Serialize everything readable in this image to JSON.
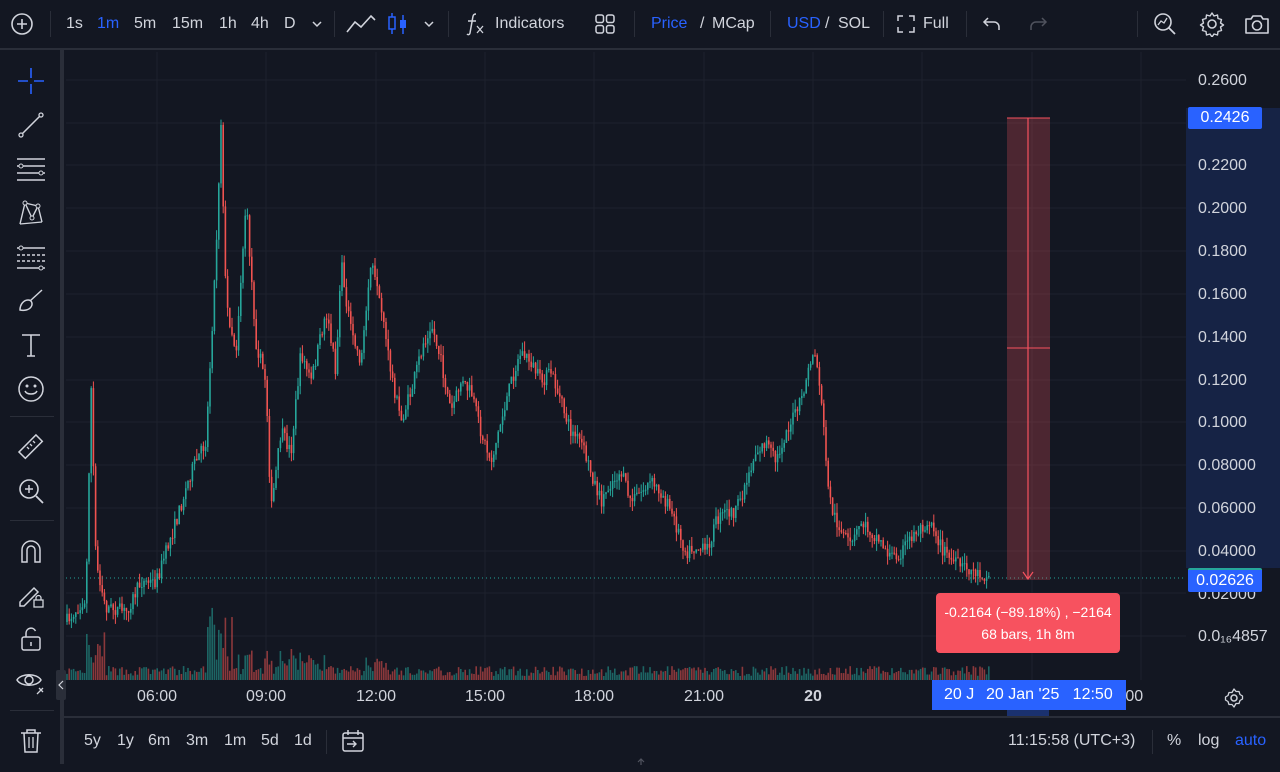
{
  "toolbar": {
    "intervals": [
      "1s",
      "1m",
      "5m",
      "15m",
      "1h",
      "4h",
      "D"
    ],
    "active_interval": "1m",
    "indicators_label": "Indicators",
    "price_label": "Price",
    "mcap_label": "MCap",
    "slash": "/",
    "usd_label": "USD",
    "sol_label": "SOL",
    "full_label": "Full"
  },
  "price_axis": {
    "labels": [
      "0.2600",
      "0.2200",
      "0.2000",
      "0.1800",
      "0.1600",
      "0.1400",
      "0.1200",
      "0.1000",
      "0.08000",
      "0.06000",
      "0.04000",
      "0.02000",
      "0.0₁₆4857"
    ],
    "high_badge": "0.2426",
    "current_badge": "0.02626"
  },
  "time_axis": {
    "labels": [
      "06:00",
      "09:00",
      "12:00",
      "15:00",
      "18:00",
      "21:00",
      "20",
      ":00"
    ],
    "crosshair_left": "20 J",
    "crosshair_label": "20 Jan '25   12:50"
  },
  "measure": {
    "line1": "-0.2164 (−89.18%) , −2164",
    "line2": "68 bars, 1h 8m"
  },
  "bottom": {
    "ranges": [
      "5y",
      "1y",
      "6m",
      "3m",
      "1m",
      "5d",
      "1d"
    ],
    "clock": "11:15:58 (UTC+3)",
    "percent": "%",
    "log": "log",
    "auto": "auto"
  },
  "colors": {
    "background": "#131722",
    "up": "#26a69a",
    "down": "#ef5350",
    "accent": "#2962ff",
    "measure": "#f7525f"
  },
  "icons": [
    "plus-circle-icon",
    "line-chart-icon",
    "candles-icon",
    "function-icon",
    "layout-grid-icon",
    "fullscreen-icon",
    "undo-icon",
    "redo-icon",
    "search-chart-icon",
    "gear-icon",
    "camera-icon",
    "crosshair-icon",
    "trendline-icon",
    "fib-icon",
    "pattern-icon",
    "projection-icon",
    "brush-icon",
    "text-icon",
    "emoji-icon",
    "ruler-icon",
    "zoom-icon",
    "magnet-icon",
    "lock-pencil-icon",
    "lock-icon",
    "eye-icon",
    "trash-icon",
    "calendar-goto-icon",
    "settings-circle-icon"
  ]
}
